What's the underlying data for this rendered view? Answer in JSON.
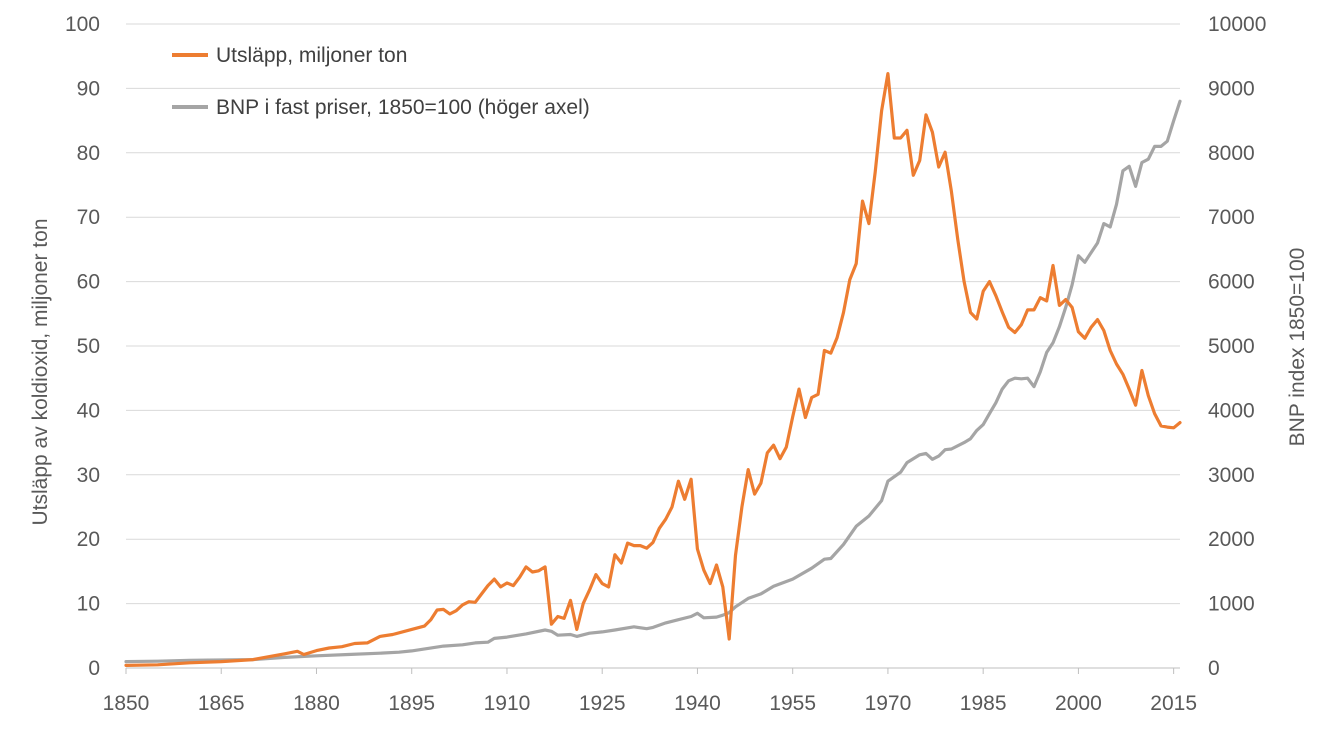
{
  "chart_data": {
    "type": "line",
    "title": "",
    "xlabel": "",
    "ylabel": "Utsläpp av koldioxid, miljoner ton",
    "y2label": "BNP index 1850=100",
    "xlim": [
      1850,
      2016
    ],
    "ylim": [
      0,
      100
    ],
    "y2lim": [
      0,
      10000
    ],
    "x_ticks": [
      "1850",
      "1865",
      "1880",
      "1895",
      "1910",
      "1925",
      "1940",
      "1955",
      "1970",
      "1985",
      "2000",
      "2015"
    ],
    "y_ticks": [
      "0",
      "10",
      "20",
      "30",
      "40",
      "50",
      "60",
      "70",
      "80",
      "90",
      "100"
    ],
    "y2_ticks": [
      "0",
      "1000",
      "2000",
      "3000",
      "4000",
      "5000",
      "6000",
      "7000",
      "8000",
      "9000",
      "10000"
    ],
    "grid": true,
    "legend_position": "top-left",
    "series": [
      {
        "name": "Utsläpp, miljoner ton",
        "axis": "left",
        "color": "#ED7D31",
        "points": [
          [
            1850,
            0.4
          ],
          [
            1855,
            0.5
          ],
          [
            1860,
            0.8
          ],
          [
            1865,
            1.0
          ],
          [
            1870,
            1.3
          ],
          [
            1875,
            2.2
          ],
          [
            1877,
            2.6
          ],
          [
            1878,
            2.1
          ],
          [
            1880,
            2.7
          ],
          [
            1882,
            3.1
          ],
          [
            1884,
            3.3
          ],
          [
            1886,
            3.8
          ],
          [
            1888,
            3.9
          ],
          [
            1890,
            4.9
          ],
          [
            1892,
            5.2
          ],
          [
            1895,
            6.0
          ],
          [
            1897,
            6.5
          ],
          [
            1898,
            7.5
          ],
          [
            1899,
            9.0
          ],
          [
            1900,
            9.1
          ],
          [
            1901,
            8.4
          ],
          [
            1902,
            8.9
          ],
          [
            1903,
            9.8
          ],
          [
            1904,
            10.3
          ],
          [
            1905,
            10.2
          ],
          [
            1906,
            11.5
          ],
          [
            1907,
            12.8
          ],
          [
            1908,
            13.8
          ],
          [
            1909,
            12.6
          ],
          [
            1910,
            13.2
          ],
          [
            1911,
            12.8
          ],
          [
            1912,
            14.1
          ],
          [
            1913,
            15.7
          ],
          [
            1914,
            14.9
          ],
          [
            1915,
            15.1
          ],
          [
            1916,
            15.7
          ],
          [
            1917,
            6.8
          ],
          [
            1918,
            8.0
          ],
          [
            1919,
            7.7
          ],
          [
            1920,
            10.5
          ],
          [
            1921,
            6.0
          ],
          [
            1922,
            10.0
          ],
          [
            1923,
            12.1
          ],
          [
            1924,
            14.5
          ],
          [
            1925,
            13.1
          ],
          [
            1926,
            12.6
          ],
          [
            1927,
            17.6
          ],
          [
            1928,
            16.3
          ],
          [
            1929,
            19.4
          ],
          [
            1930,
            19.0
          ],
          [
            1931,
            19.0
          ],
          [
            1932,
            18.6
          ],
          [
            1933,
            19.5
          ],
          [
            1934,
            21.7
          ],
          [
            1935,
            23.1
          ],
          [
            1936,
            25.0
          ],
          [
            1937,
            29.0
          ],
          [
            1938,
            26.2
          ],
          [
            1939,
            29.3
          ],
          [
            1940,
            18.5
          ],
          [
            1941,
            15.2
          ],
          [
            1942,
            13.1
          ],
          [
            1943,
            16.0
          ],
          [
            1944,
            12.6
          ],
          [
            1945,
            4.5
          ],
          [
            1946,
            17.5
          ],
          [
            1947,
            25.0
          ],
          [
            1948,
            30.8
          ],
          [
            1949,
            27.0
          ],
          [
            1950,
            28.7
          ],
          [
            1951,
            33.4
          ],
          [
            1952,
            34.6
          ],
          [
            1953,
            32.5
          ],
          [
            1954,
            34.3
          ],
          [
            1955,
            39.0
          ],
          [
            1956,
            43.3
          ],
          [
            1957,
            38.9
          ],
          [
            1958,
            42.0
          ],
          [
            1959,
            42.5
          ],
          [
            1960,
            49.3
          ],
          [
            1961,
            48.9
          ],
          [
            1962,
            51.3
          ],
          [
            1963,
            55.2
          ],
          [
            1964,
            60.3
          ],
          [
            1965,
            62.8
          ],
          [
            1966,
            72.5
          ],
          [
            1967,
            69.0
          ],
          [
            1968,
            77.0
          ],
          [
            1969,
            86.5
          ],
          [
            1970,
            92.3
          ],
          [
            1971,
            82.3
          ],
          [
            1972,
            82.3
          ],
          [
            1973,
            83.5
          ],
          [
            1974,
            76.5
          ],
          [
            1975,
            78.8
          ],
          [
            1976,
            85.9
          ],
          [
            1977,
            83.2
          ],
          [
            1978,
            77.8
          ],
          [
            1979,
            80.1
          ],
          [
            1980,
            74.0
          ],
          [
            1981,
            66.5
          ],
          [
            1982,
            60.0
          ],
          [
            1983,
            55.2
          ],
          [
            1984,
            54.2
          ],
          [
            1985,
            58.5
          ],
          [
            1986,
            60.0
          ],
          [
            1987,
            57.8
          ],
          [
            1988,
            55.3
          ],
          [
            1989,
            52.9
          ],
          [
            1990,
            52.1
          ],
          [
            1991,
            53.3
          ],
          [
            1992,
            55.6
          ],
          [
            1993,
            55.6
          ],
          [
            1994,
            57.5
          ],
          [
            1995,
            57.0
          ],
          [
            1996,
            62.5
          ],
          [
            1997,
            56.3
          ],
          [
            1998,
            57.2
          ],
          [
            1999,
            56.0
          ],
          [
            2000,
            52.2
          ],
          [
            2001,
            51.2
          ],
          [
            2002,
            52.9
          ],
          [
            2003,
            54.1
          ],
          [
            2004,
            52.4
          ],
          [
            2005,
            49.3
          ],
          [
            2006,
            47.2
          ],
          [
            2007,
            45.6
          ],
          [
            2008,
            43.3
          ],
          [
            2009,
            40.8
          ],
          [
            2010,
            46.2
          ],
          [
            2011,
            42.3
          ],
          [
            2012,
            39.5
          ],
          [
            2013,
            37.6
          ],
          [
            2014,
            37.4
          ],
          [
            2015,
            37.3
          ],
          [
            2016,
            38.1
          ]
        ]
      },
      {
        "name": "BNP i fast priser, 1850=100 (höger axel)",
        "axis": "right",
        "color": "#A5A5A5",
        "points": [
          [
            1850,
            100
          ],
          [
            1855,
            105
          ],
          [
            1860,
            120
          ],
          [
            1863,
            123
          ],
          [
            1865,
            125
          ],
          [
            1870,
            130
          ],
          [
            1875,
            165
          ],
          [
            1880,
            190
          ],
          [
            1885,
            210
          ],
          [
            1890,
            230
          ],
          [
            1893,
            245
          ],
          [
            1895,
            265
          ],
          [
            1900,
            340
          ],
          [
            1903,
            360
          ],
          [
            1905,
            390
          ],
          [
            1907,
            400
          ],
          [
            1908,
            460
          ],
          [
            1910,
            480
          ],
          [
            1913,
            530
          ],
          [
            1916,
            590
          ],
          [
            1917,
            570
          ],
          [
            1918,
            510
          ],
          [
            1920,
            520
          ],
          [
            1921,
            490
          ],
          [
            1923,
            540
          ],
          [
            1925,
            560
          ],
          [
            1927,
            590
          ],
          [
            1930,
            640
          ],
          [
            1932,
            610
          ],
          [
            1933,
            630
          ],
          [
            1935,
            700
          ],
          [
            1937,
            750
          ],
          [
            1939,
            800
          ],
          [
            1940,
            850
          ],
          [
            1941,
            780
          ],
          [
            1943,
            790
          ],
          [
            1944,
            820
          ],
          [
            1945,
            860
          ],
          [
            1946,
            950
          ],
          [
            1948,
            1080
          ],
          [
            1950,
            1150
          ],
          [
            1952,
            1270
          ],
          [
            1955,
            1380
          ],
          [
            1958,
            1550
          ],
          [
            1960,
            1690
          ],
          [
            1961,
            1700
          ],
          [
            1963,
            1920
          ],
          [
            1965,
            2200
          ],
          [
            1967,
            2360
          ],
          [
            1969,
            2600
          ],
          [
            1970,
            2900
          ],
          [
            1972,
            3040
          ],
          [
            1973,
            3190
          ],
          [
            1975,
            3310
          ],
          [
            1976,
            3330
          ],
          [
            1977,
            3240
          ],
          [
            1978,
            3290
          ],
          [
            1979,
            3390
          ],
          [
            1980,
            3400
          ],
          [
            1982,
            3500
          ],
          [
            1983,
            3560
          ],
          [
            1984,
            3690
          ],
          [
            1985,
            3780
          ],
          [
            1986,
            3950
          ],
          [
            1987,
            4120
          ],
          [
            1988,
            4330
          ],
          [
            1989,
            4460
          ],
          [
            1990,
            4500
          ],
          [
            1991,
            4490
          ],
          [
            1992,
            4500
          ],
          [
            1993,
            4370
          ],
          [
            1994,
            4600
          ],
          [
            1995,
            4900
          ],
          [
            1996,
            5050
          ],
          [
            1997,
            5300
          ],
          [
            1998,
            5600
          ],
          [
            1999,
            5950
          ],
          [
            2000,
            6400
          ],
          [
            2001,
            6300
          ],
          [
            2002,
            6450
          ],
          [
            2003,
            6600
          ],
          [
            2004,
            6900
          ],
          [
            2005,
            6850
          ],
          [
            2006,
            7200
          ],
          [
            2007,
            7720
          ],
          [
            2008,
            7790
          ],
          [
            2009,
            7480
          ],
          [
            2010,
            7850
          ],
          [
            2011,
            7900
          ],
          [
            2012,
            8100
          ],
          [
            2013,
            8100
          ],
          [
            2014,
            8180
          ],
          [
            2015,
            8500
          ],
          [
            2016,
            8800
          ]
        ]
      }
    ]
  }
}
